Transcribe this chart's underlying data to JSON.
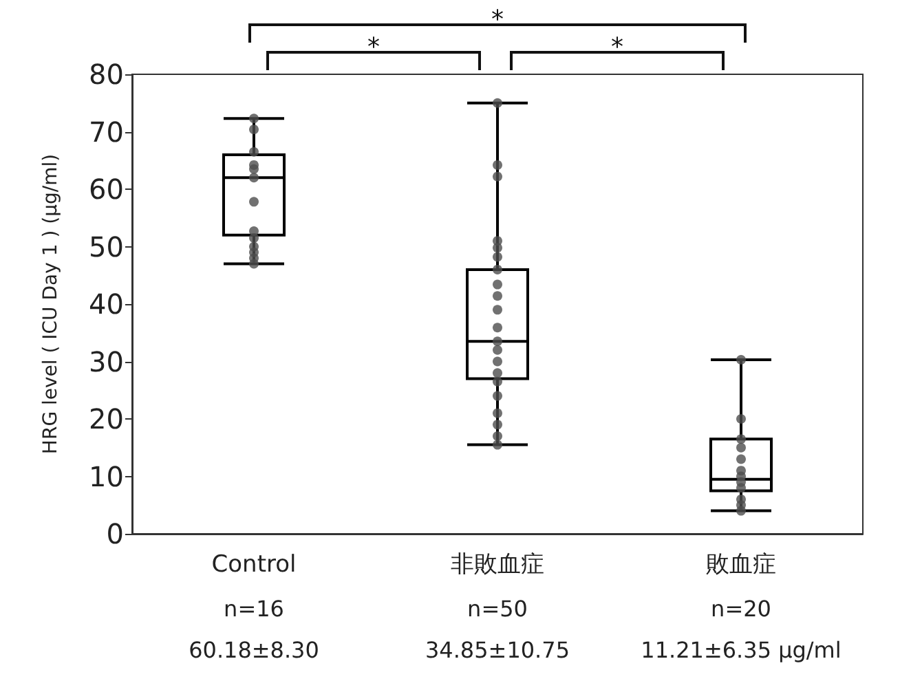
{
  "chart_data": {
    "type": "box",
    "ylabel": "HRG level ( ICU Day 1 ) (μg/ml)",
    "categories": [
      "Control",
      "非敗血症",
      "敗血症"
    ],
    "ylim": [
      0,
      80
    ],
    "yticks": [
      0,
      10,
      20,
      30,
      40,
      50,
      60,
      70,
      80
    ],
    "grid": false,
    "series": [
      {
        "color": "#000000",
        "boxes": [
          {
            "low": 47,
            "q1": 52,
            "median": 62,
            "q3": 66,
            "high": 72.3
          },
          {
            "low": 15.5,
            "q1": 27,
            "median": 33.5,
            "q3": 46,
            "high": 75
          },
          {
            "low": 4,
            "q1": 7.5,
            "median": 9.5,
            "q3": 16.5,
            "high": 30.3
          }
        ]
      },
      {
        "type": "scatter",
        "color": "#4d4d4d",
        "marker": "circle",
        "x": [
          "Control",
          "Control",
          "Control",
          "Control",
          "Control",
          "Control",
          "Control",
          "Control",
          "Control",
          "Control",
          "Control",
          "Control",
          "Control",
          "非敗血症",
          "非敗血症",
          "非敗血症",
          "非敗血症",
          "非敗血症",
          "非敗血症",
          "非敗血症",
          "非敗血症",
          "非敗血症",
          "非敗血症",
          "非敗血症",
          "非敗血症",
          "非敗血症",
          "非敗血症",
          "非敗血症",
          "非敗血症",
          "非敗血症",
          "非敗血症",
          "非敗血症",
          "非敗血症",
          "非敗血症",
          "非敗血症",
          "敗血症",
          "敗血症",
          "敗血症",
          "敗血症",
          "敗血症",
          "敗血症",
          "敗血症",
          "敗血症",
          "敗血症",
          "敗血症",
          "敗血症",
          "敗血症",
          "敗血症"
        ],
        "values": [
          72.3,
          70.4,
          66.5,
          64.2,
          63.5,
          62,
          57.8,
          52.7,
          51.5,
          50,
          49,
          48,
          47,
          75,
          64.2,
          62.2,
          51,
          49.8,
          48.2,
          46,
          43.4,
          41.4,
          39,
          35.9,
          null,
          33.5,
          32,
          30,
          28,
          26.5,
          24,
          21,
          19,
          17,
          15.5,
          30.3,
          20,
          16.5,
          15,
          13,
          11,
          10,
          9,
          8,
          null,
          6,
          5,
          4
        ]
      }
    ],
    "annotations": [
      "*",
      "*",
      "*",
      "n=16",
      "n=50",
      "n=20",
      "60.18±8.30",
      "34.85±10.75",
      "11.21±6.35 μg/ml"
    ]
  }
}
